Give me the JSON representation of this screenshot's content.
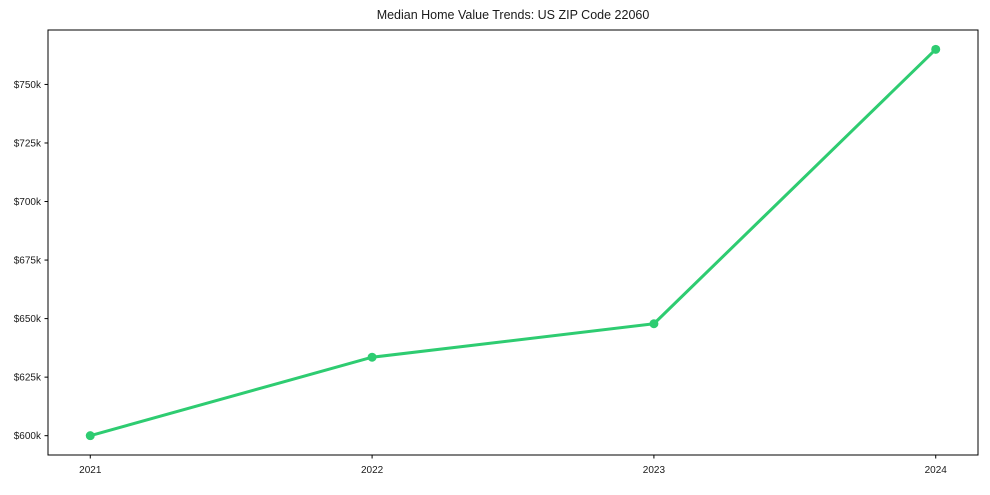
{
  "chart_data": {
    "type": "line",
    "title": "Median Home Value Trends: US ZIP Code 22060",
    "x": [
      2021,
      2022,
      2023,
      2024
    ],
    "x_tick_labels": [
      "2021",
      "2022",
      "2023",
      "2024"
    ],
    "series": [
      {
        "name": "Median Home Value",
        "values": [
          600000,
          633500,
          647800,
          765000
        ],
        "color": "#2ecc71"
      }
    ],
    "y_ticks": [
      {
        "value": 600000,
        "label": "$600k"
      },
      {
        "value": 625000,
        "label": "$625k"
      },
      {
        "value": 650000,
        "label": "$650k"
      },
      {
        "value": 675000,
        "label": "$675k"
      },
      {
        "value": 700000,
        "label": "$700k"
      },
      {
        "value": 725000,
        "label": "$725k"
      },
      {
        "value": 750000,
        "label": "$750k"
      }
    ],
    "xlim": [
      2020.85,
      2024.15
    ],
    "ylim": [
      591750,
      773250
    ],
    "grid": false,
    "legend": "none",
    "line_width": 3,
    "marker": "circle",
    "marker_radius": 4.5,
    "axis_color": "#000000",
    "text_color": "#1a1a1a",
    "background": "#ffffff"
  }
}
